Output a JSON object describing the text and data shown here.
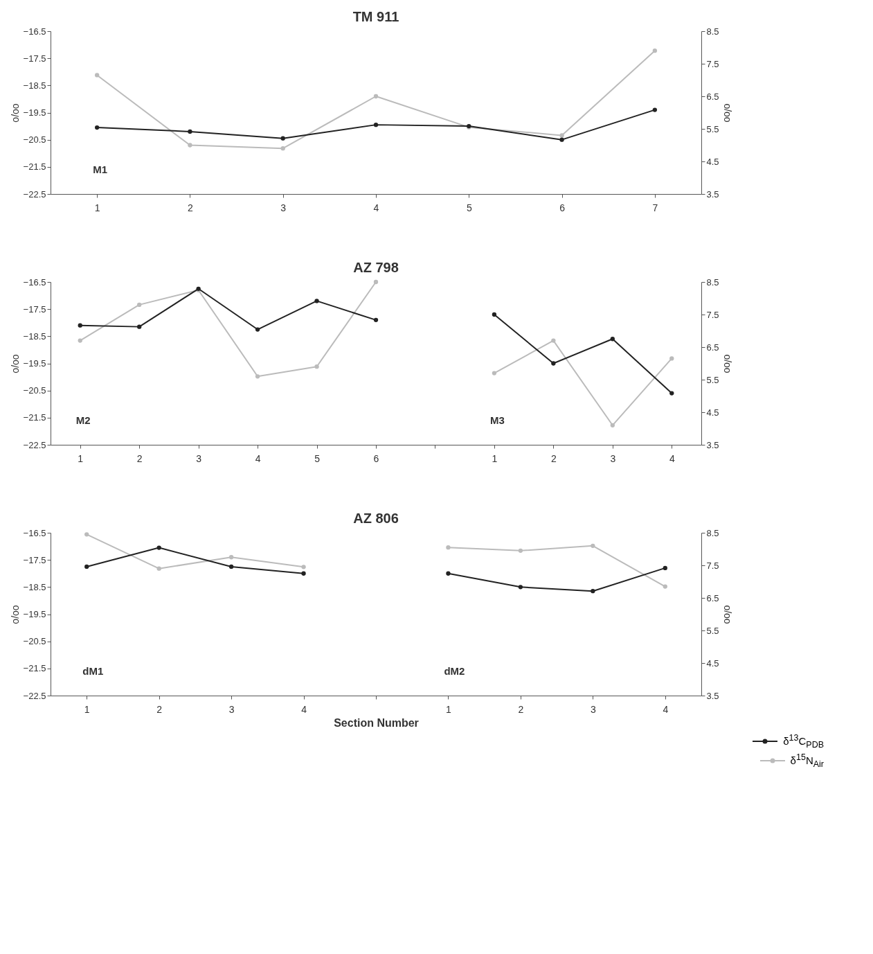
{
  "chart_data": [
    {
      "type": "line",
      "title": "TM 911",
      "ylabel": "o/oo",
      "y2label": "o/oo",
      "categories": [
        "1",
        "2",
        "3",
        "4",
        "5",
        "6",
        "7"
      ],
      "marker": "circle",
      "legend": "bottom right",
      "ylim": [
        -22.5,
        -16.5
      ],
      "yticks": [
        -22.5,
        -21.5,
        -20.5,
        -19.5,
        -18.5,
        -17.5,
        -16.5
      ],
      "y2lim": [
        3.5,
        8.5
      ],
      "y2ticks": [
        3.5,
        4.5,
        5.5,
        6.5,
        7.5,
        8.5
      ],
      "annotations": [
        "M1"
      ],
      "series": [
        {
          "name": "δ$^{13}$C$_{PDB}$",
          "color": "#222222",
          "values": [
            -20.05,
            -20.2,
            -20.45,
            -19.95,
            -20.0,
            -20.5,
            -19.4
          ]
        },
        {
          "name": "δ$^{15}$N$_{Air}$",
          "color": "#bbbbbb",
          "axis": "y2",
          "values": [
            7.15,
            5.0,
            4.9,
            6.5,
            5.55,
            5.3,
            7.9
          ]
        }
      ]
    },
    {
      "type": "line",
      "title": "AZ 798",
      "ylabel": "o/oo",
      "y2label": "o/oo",
      "categories": [
        "1",
        "2",
        "3",
        "4",
        "5",
        "6",
        null,
        "1",
        "2",
        "3",
        "4"
      ],
      "marker": "circle",
      "ylim": [
        -22.5,
        -16.5
      ],
      "yticks": [
        -22.5,
        -21.5,
        -20.5,
        -19.5,
        -18.5,
        -17.5,
        -16.5
      ],
      "y2lim": [
        3.5,
        8.5
      ],
      "y2ticks": [
        3.5,
        4.5,
        5.5,
        6.5,
        7.5,
        8.5
      ],
      "annotations": [
        "M2",
        "M3"
      ],
      "series": [
        {
          "color": "#222222",
          "values": [
            -18.1,
            -18.15,
            -16.75,
            -18.25,
            -17.2,
            -17.9,
            null,
            -17.7,
            -19.5,
            -18.6,
            -20.6
          ]
        },
        {
          "color": "#bbbbbb",
          "axis": "y2",
          "values": [
            6.7,
            7.8,
            8.25,
            5.6,
            5.9,
            8.5,
            null,
            5.7,
            6.7,
            4.1,
            6.15
          ]
        }
      ]
    },
    {
      "type": "line",
      "title": "AZ 806",
      "xlabel": "Section Number",
      "ylabel": "o/oo",
      "y2label": "o/oo",
      "categories": [
        "1",
        "2",
        "3",
        "4",
        null,
        "1",
        "2",
        "3",
        "4"
      ],
      "marker": "circle",
      "ylim": [
        -22.5,
        -16.5
      ],
      "yticks": [
        -22.5,
        -21.5,
        -20.5,
        -19.5,
        -18.5,
        -17.5,
        -16.5
      ],
      "y2lim": [
        3.5,
        8.5
      ],
      "y2ticks": [
        3.5,
        4.5,
        5.5,
        6.5,
        7.5,
        8.5
      ],
      "annotations": [
        "dM1",
        "dM2"
      ],
      "series": [
        {
          "color": "#222222",
          "values": [
            -17.75,
            -17.05,
            -17.75,
            -18.0,
            null,
            -18.0,
            -18.5,
            -18.65,
            -17.8
          ]
        },
        {
          "color": "#bbbbbb",
          "axis": "y2",
          "values": [
            8.45,
            7.4,
            7.75,
            7.45,
            null,
            8.05,
            7.95,
            8.1,
            6.85
          ]
        }
      ]
    }
  ]
}
